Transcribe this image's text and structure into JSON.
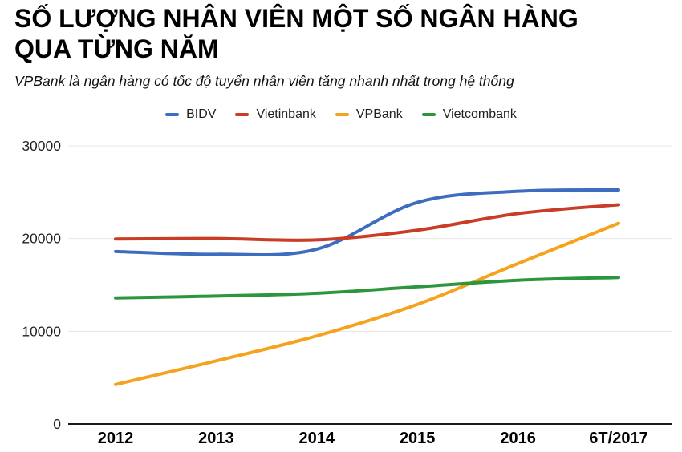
{
  "header": {
    "title_line1": "SỐ LƯỢNG NHÂN VIÊN MỘT SỐ NGÂN HÀNG",
    "title_line2": "QUA TỪNG NĂM",
    "subtitle": "VPBank là ngân hàng có tốc độ tuyển nhân viên tăng nhanh nhất trong hệ thống"
  },
  "colors": {
    "background": "#ffffff",
    "grid": "#e7e7e7",
    "axis": "#1a1a1a",
    "y_tick_label": "#1f1f1f",
    "x_tick_label": "#000000"
  },
  "chart_data": {
    "type": "line",
    "smooth": true,
    "grid": true,
    "legend_position": "top",
    "categories": [
      "2012",
      "2013",
      "2014",
      "2015",
      "2016",
      "6T/2017"
    ],
    "series": [
      {
        "name": "BIDV",
        "color": "#3E6DC0",
        "values": [
          18600,
          18300,
          18850,
          23900,
          25100,
          25250
        ]
      },
      {
        "name": "Vietinbank",
        "color": "#C93D26",
        "values": [
          19950,
          20000,
          19850,
          20900,
          22700,
          23650
        ]
      },
      {
        "name": "VPBank",
        "color": "#F5A21C",
        "values": [
          4250,
          6800,
          9500,
          12900,
          17300,
          21650
        ]
      },
      {
        "name": "Vietcombank",
        "color": "#2B963C",
        "values": [
          13600,
          13800,
          14100,
          14800,
          15500,
          15800
        ]
      }
    ],
    "ylim": [
      0,
      30000
    ],
    "y_ticks": [
      0,
      10000,
      20000,
      30000
    ],
    "xlabel": "",
    "ylabel": ""
  }
}
